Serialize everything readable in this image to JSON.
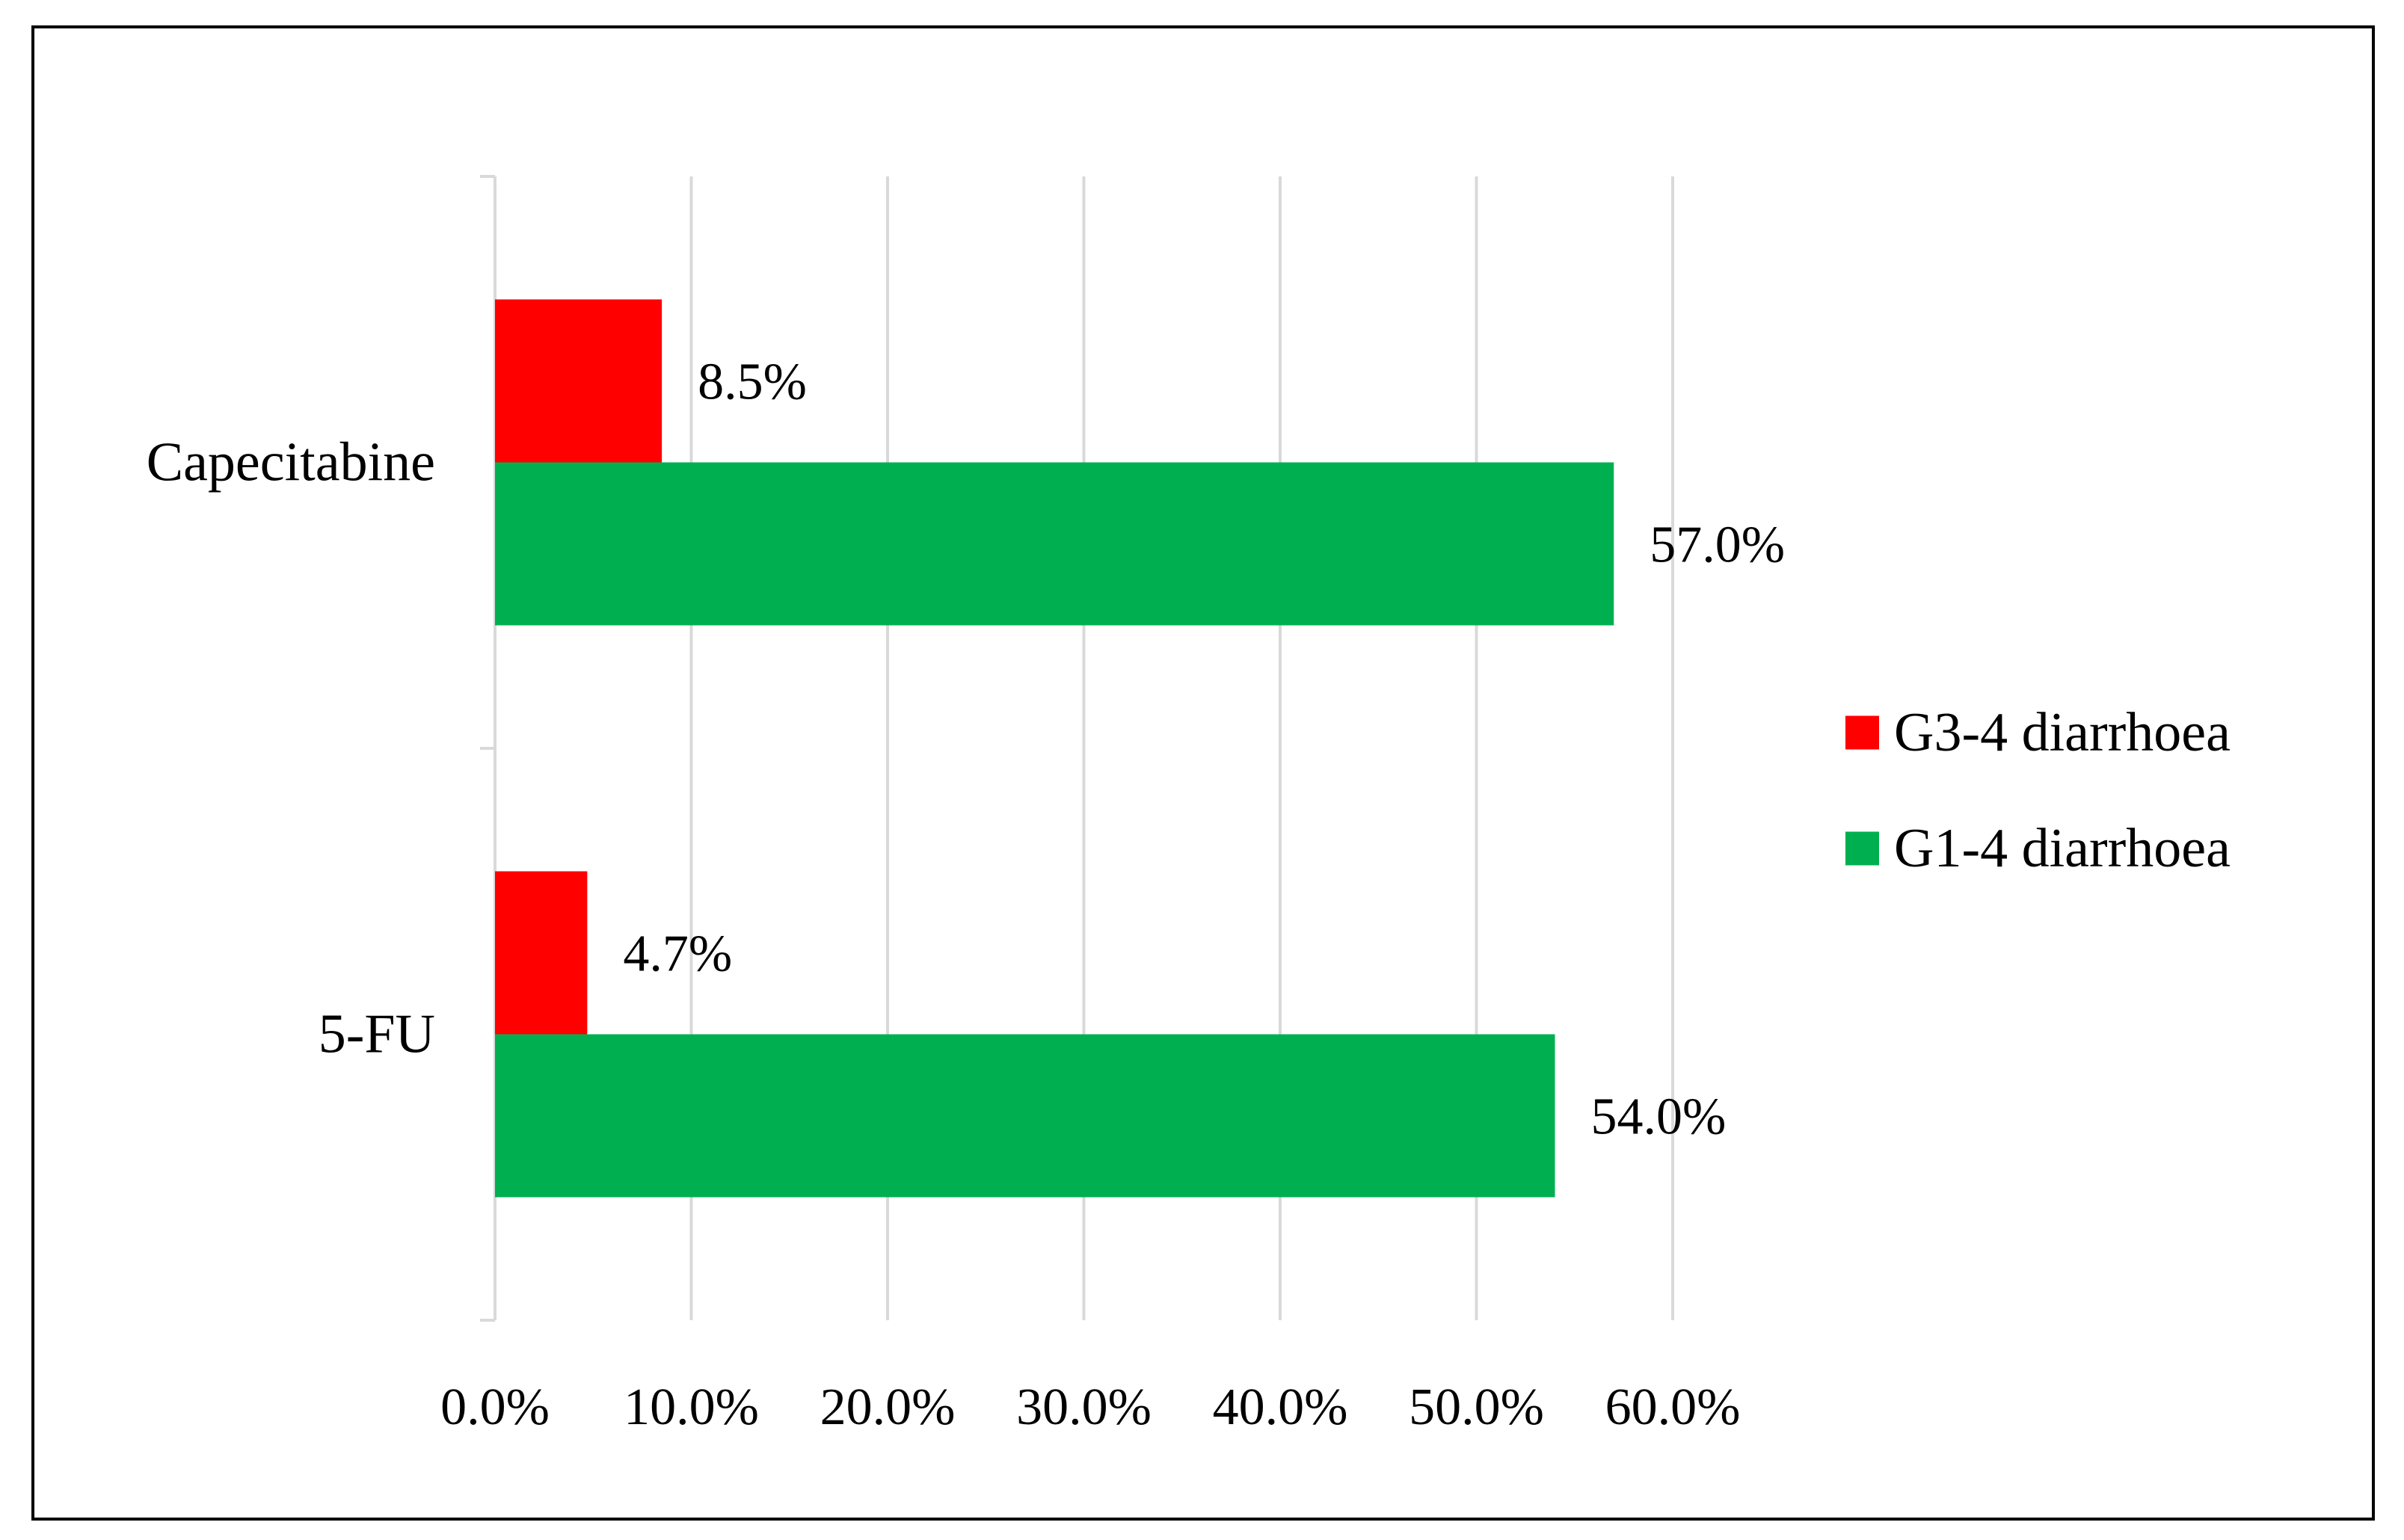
{
  "chart_data": {
    "type": "bar",
    "orientation": "horizontal",
    "title": "",
    "xlabel": "",
    "ylabel": "",
    "categories": [
      "Capecitabine",
      "5-FU"
    ],
    "series": [
      {
        "name": "G3-4 diarrhoea",
        "color": "#ff0000",
        "values": [
          8.5,
          4.7
        ],
        "labels": [
          "8.5%",
          "4.7%"
        ]
      },
      {
        "name": "G1-4 diarrhoea",
        "color": "#00b050",
        "values": [
          57.0,
          54.0
        ],
        "labels": [
          "57.0%",
          "54.0%"
        ]
      }
    ],
    "xlim": [
      0,
      60
    ],
    "x_ticks": [
      0,
      10,
      20,
      30,
      40,
      50,
      60
    ],
    "x_tick_labels": [
      "0.0%",
      "10.0%",
      "20.0%",
      "30.0%",
      "40.0%",
      "50.0%",
      "60.0%"
    ],
    "grid": "vertical",
    "legend_position": "right",
    "colors": {
      "gridline": "#d9d9d9",
      "axis": "#d9d9d9",
      "frame": "#000000"
    }
  }
}
